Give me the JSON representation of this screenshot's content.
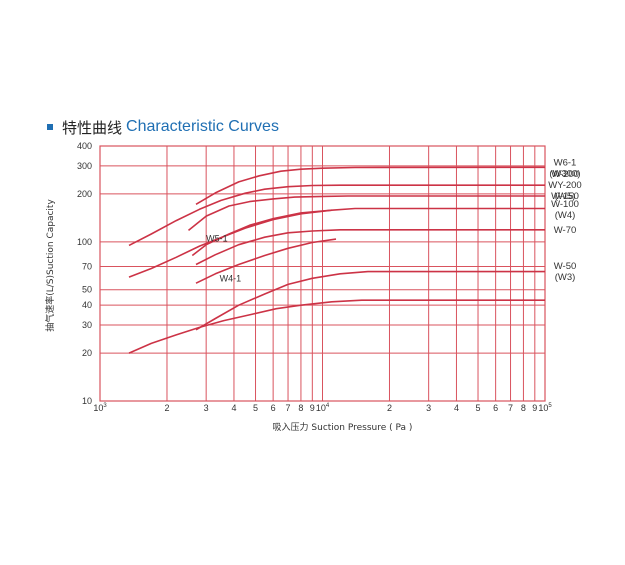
{
  "header": {
    "title_cn": "特性曲线",
    "title_en": "Characteristic  Curves"
  },
  "chart_data": {
    "type": "line",
    "x_scale": "log",
    "y_scale": "log",
    "xlim": [
      1000,
      100000
    ],
    "ylim": [
      10,
      400
    ],
    "xlabel": "吸入压力 Suction Pressure ( Pa )",
    "ylabel": "抽气速率(L/S)Suction Capacity",
    "grid": true,
    "x_ticks": [
      {
        "v": 1000,
        "b": "10",
        "e": "3"
      },
      {
        "v": 2000,
        "b": "2"
      },
      {
        "v": 3000,
        "b": "3"
      },
      {
        "v": 4000,
        "b": "4"
      },
      {
        "v": 5000,
        "b": "5"
      },
      {
        "v": 6000,
        "b": "6"
      },
      {
        "v": 7000,
        "b": "7"
      },
      {
        "v": 8000,
        "b": "8"
      },
      {
        "v": 9000,
        "b": "9"
      },
      {
        "v": 10000,
        "b": "10",
        "e": "4"
      },
      {
        "v": 20000,
        "b": "2"
      },
      {
        "v": 30000,
        "b": "3"
      },
      {
        "v": 40000,
        "b": "4"
      },
      {
        "v": 50000,
        "b": "5"
      },
      {
        "v": 60000,
        "b": "6"
      },
      {
        "v": 70000,
        "b": "7"
      },
      {
        "v": 80000,
        "b": "8"
      },
      {
        "v": 90000,
        "b": "9"
      },
      {
        "v": 100000,
        "b": "10",
        "e": "5"
      }
    ],
    "y_ticks": [
      10,
      20,
      30,
      40,
      50,
      70,
      100,
      200,
      300,
      400
    ],
    "series": [
      {
        "name": "W6-1",
        "x": [
          2700,
          3300,
          4200,
          5200,
          6500,
          8000,
          10000,
          14000,
          100000
        ],
        "y": [
          172,
          203,
          238,
          260,
          278,
          286,
          290,
          293,
          294
        ]
      },
      {
        "name": "W-200",
        "x": [
          1350,
          1700,
          2200,
          2800,
          3500,
          4500,
          5500,
          7000,
          9000,
          12000,
          100000
        ],
        "y": [
          95,
          112,
          136,
          160,
          182,
          202,
          214,
          222,
          226,
          227,
          227
        ]
      },
      {
        "name": "W-150",
        "x": [
          2500,
          3000,
          3800,
          4700,
          6000,
          7500,
          10000,
          13000,
          100000
        ],
        "y": [
          118,
          145,
          168,
          179,
          186,
          191,
          193,
          194,
          194
        ]
      },
      {
        "name": "W-100",
        "x": [
          1350,
          1700,
          2200,
          2800,
          3600,
          4500,
          6000,
          8000,
          11000,
          14000,
          100000
        ],
        "y": [
          60,
          68,
          80,
          94,
          108,
          122,
          138,
          150,
          158,
          162,
          162
        ]
      },
      {
        "name": "W5-1",
        "x": [
          2600,
          3000,
          3800,
          4700,
          6000,
          8000,
          11000
        ],
        "y": [
          82,
          96,
          112,
          127,
          140,
          152,
          158
        ]
      },
      {
        "name": "W-70",
        "x": [
          2700,
          3300,
          4200,
          5500,
          7000,
          9000,
          12000,
          16000,
          100000
        ],
        "y": [
          72,
          83,
          96,
          107,
          114,
          117,
          119,
          119,
          119
        ]
      },
      {
        "name": "W4-1",
        "x": [
          2700,
          3300,
          4200,
          5500,
          7000,
          9000,
          11500
        ],
        "y": [
          55,
          63,
          72,
          82,
          91,
          99,
          104
        ]
      },
      {
        "name": "W-50",
        "x": [
          2700,
          3300,
          4200,
          5500,
          7000,
          9000,
          12000,
          16000,
          100000
        ],
        "y": [
          28,
          33,
          40,
          47,
          54,
          59,
          63,
          65,
          65
        ]
      },
      {
        "name": "W-50(W3)",
        "x": [
          1350,
          1700,
          2200,
          2800,
          3600,
          4800,
          6200,
          8000,
          11000,
          15000,
          100000
        ],
        "y": [
          20,
          23,
          26,
          29,
          32,
          35,
          38,
          40,
          42,
          43,
          43
        ]
      }
    ],
    "annotations": [
      {
        "text": "W5-1",
        "x": 3000,
        "y": 105
      },
      {
        "text": "W4-1",
        "x": 3450,
        "y": 59
      }
    ],
    "series_labels": [
      {
        "lines": [
          "W6-1",
          "(W300)"
        ],
        "y": 290
      },
      {
        "lines": [
          "W-200",
          "WY-200",
          "(W5)"
        ],
        "y": 228
      },
      {
        "lines": [
          "W-150"
        ],
        "y": 194
      },
      {
        "lines": [
          "W-100",
          "(W4)"
        ],
        "y": 160
      },
      {
        "lines": [
          "W-70"
        ],
        "y": 119
      },
      {
        "lines": [
          "W-50",
          "(W3)"
        ],
        "y": 65
      }
    ]
  }
}
